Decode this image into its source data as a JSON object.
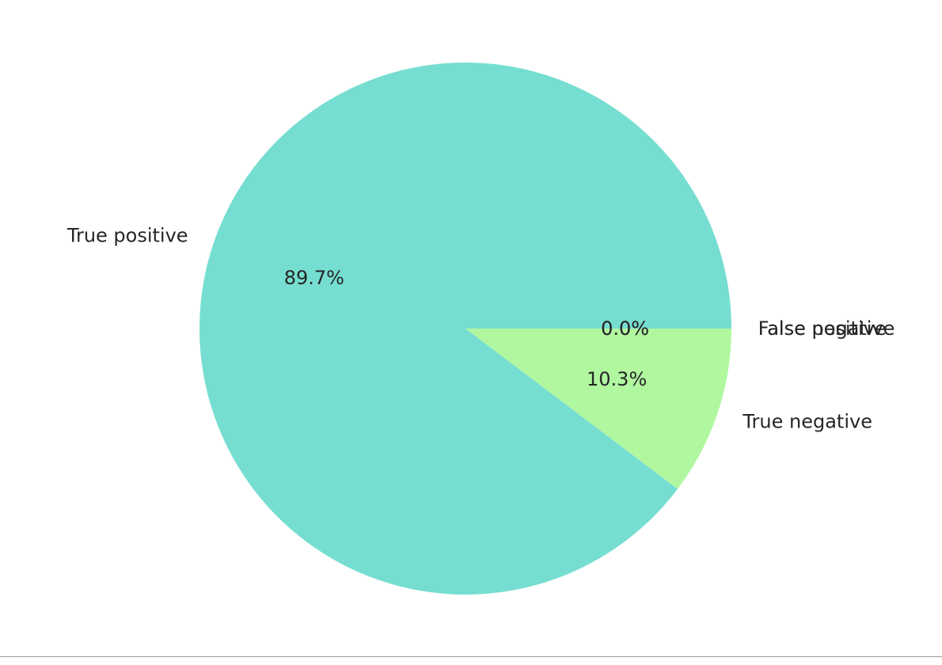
{
  "chart_data": {
    "type": "pie",
    "title": "",
    "slices": [
      {
        "label": "True positive",
        "value": 89.7,
        "pct_label": "89.7%",
        "color": "#76ded0"
      },
      {
        "label": "True negative",
        "value": 10.3,
        "pct_label": "10.3%",
        "color": "#b0f7a0"
      },
      {
        "label": "False positive",
        "value": 0.0,
        "pct_label": "0.0%",
        "color": "#9fdfff"
      },
      {
        "label": "False negative",
        "value": 0.0,
        "pct_label": "0.0%",
        "color": "#ffb3b3"
      }
    ],
    "start_angle": "0 degrees (3 o'clock)",
    "direction": "counterclockwise"
  }
}
